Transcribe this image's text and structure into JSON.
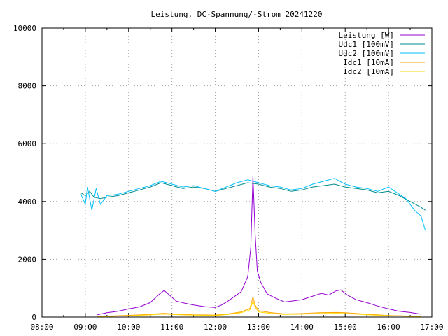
{
  "chart_data": {
    "type": "line",
    "title": "Leistung, DC-Spannung/-Strom 20241220",
    "xlabel": "",
    "ylabel": "",
    "xlim": [
      8,
      17
    ],
    "ylim": [
      0,
      10000
    ],
    "x_ticks": [
      {
        "v": 8,
        "label": "08:00"
      },
      {
        "v": 9,
        "label": "09:00"
      },
      {
        "v": 10,
        "label": "10:00"
      },
      {
        "v": 11,
        "label": "11:00"
      },
      {
        "v": 12,
        "label": "12:00"
      },
      {
        "v": 13,
        "label": "13:00"
      },
      {
        "v": 14,
        "label": "14:00"
      },
      {
        "v": 15,
        "label": "15:00"
      },
      {
        "v": 16,
        "label": "16:00"
      },
      {
        "v": 17,
        "label": "17:00"
      }
    ],
    "y_ticks": [
      {
        "v": 0,
        "label": "0"
      },
      {
        "v": 2000,
        "label": "2000"
      },
      {
        "v": 4000,
        "label": "4000"
      },
      {
        "v": 6000,
        "label": "6000"
      },
      {
        "v": 8000,
        "label": "8000"
      },
      {
        "v": 10000,
        "label": "10000"
      }
    ],
    "grid": true,
    "legend_position": "top-right",
    "series": [
      {
        "name": "Leistung [W]",
        "color": "#9400d3",
        "points": [
          [
            9.28,
            80
          ],
          [
            9.5,
            150
          ],
          [
            9.75,
            200
          ],
          [
            10.0,
            280
          ],
          [
            10.25,
            350
          ],
          [
            10.5,
            500
          ],
          [
            10.7,
            780
          ],
          [
            10.82,
            920
          ],
          [
            10.95,
            750
          ],
          [
            11.1,
            550
          ],
          [
            11.3,
            480
          ],
          [
            11.5,
            420
          ],
          [
            11.75,
            360
          ],
          [
            12.0,
            330
          ],
          [
            12.15,
            420
          ],
          [
            12.3,
            560
          ],
          [
            12.45,
            720
          ],
          [
            12.6,
            880
          ],
          [
            12.75,
            1400
          ],
          [
            12.82,
            2400
          ],
          [
            12.87,
            4900
          ],
          [
            12.92,
            2900
          ],
          [
            12.97,
            1600
          ],
          [
            13.05,
            1200
          ],
          [
            13.2,
            800
          ],
          [
            13.4,
            650
          ],
          [
            13.6,
            520
          ],
          [
            13.8,
            560
          ],
          [
            14.0,
            600
          ],
          [
            14.2,
            700
          ],
          [
            14.45,
            820
          ],
          [
            14.62,
            760
          ],
          [
            14.78,
            900
          ],
          [
            14.9,
            940
          ],
          [
            15.05,
            760
          ],
          [
            15.25,
            600
          ],
          [
            15.5,
            500
          ],
          [
            15.75,
            380
          ],
          [
            16.0,
            280
          ],
          [
            16.25,
            200
          ],
          [
            16.5,
            160
          ],
          [
            16.75,
            100
          ]
        ]
      },
      {
        "name": "Udc1 [100mV]",
        "color": "#008b8b",
        "points": [
          [
            8.9,
            4300
          ],
          [
            9.0,
            4200
          ],
          [
            9.1,
            4350
          ],
          [
            9.2,
            4150
          ],
          [
            9.35,
            4100
          ],
          [
            9.5,
            4150
          ],
          [
            9.75,
            4200
          ],
          [
            10.0,
            4300
          ],
          [
            10.25,
            4400
          ],
          [
            10.5,
            4500
          ],
          [
            10.75,
            4650
          ],
          [
            11.0,
            4550
          ],
          [
            11.25,
            4450
          ],
          [
            11.5,
            4500
          ],
          [
            11.75,
            4450
          ],
          [
            12.0,
            4350
          ],
          [
            12.25,
            4450
          ],
          [
            12.5,
            4550
          ],
          [
            12.75,
            4650
          ],
          [
            13.0,
            4600
          ],
          [
            13.25,
            4500
          ],
          [
            13.5,
            4450
          ],
          [
            13.75,
            4350
          ],
          [
            14.0,
            4400
          ],
          [
            14.25,
            4500
          ],
          [
            14.5,
            4550
          ],
          [
            14.75,
            4600
          ],
          [
            15.0,
            4500
          ],
          [
            15.25,
            4450
          ],
          [
            15.5,
            4400
          ],
          [
            15.75,
            4300
          ],
          [
            16.0,
            4350
          ],
          [
            16.25,
            4200
          ],
          [
            16.5,
            4000
          ],
          [
            16.75,
            3800
          ],
          [
            16.85,
            3700
          ]
        ]
      },
      {
        "name": "Udc2 [100mV]",
        "color": "#00bfff",
        "points": [
          [
            8.9,
            4250
          ],
          [
            9.0,
            3900
          ],
          [
            9.05,
            4500
          ],
          [
            9.15,
            3700
          ],
          [
            9.25,
            4450
          ],
          [
            9.35,
            3900
          ],
          [
            9.5,
            4200
          ],
          [
            9.75,
            4250
          ],
          [
            10.0,
            4350
          ],
          [
            10.25,
            4450
          ],
          [
            10.5,
            4550
          ],
          [
            10.75,
            4700
          ],
          [
            11.0,
            4600
          ],
          [
            11.25,
            4500
          ],
          [
            11.5,
            4550
          ],
          [
            11.75,
            4450
          ],
          [
            12.0,
            4350
          ],
          [
            12.25,
            4500
          ],
          [
            12.5,
            4650
          ],
          [
            12.75,
            4750
          ],
          [
            13.0,
            4650
          ],
          [
            13.25,
            4550
          ],
          [
            13.5,
            4500
          ],
          [
            13.75,
            4400
          ],
          [
            14.0,
            4450
          ],
          [
            14.25,
            4600
          ],
          [
            14.5,
            4700
          ],
          [
            14.75,
            4800
          ],
          [
            15.0,
            4600
          ],
          [
            15.25,
            4500
          ],
          [
            15.5,
            4450
          ],
          [
            15.75,
            4350
          ],
          [
            16.0,
            4500
          ],
          [
            16.2,
            4300
          ],
          [
            16.4,
            4100
          ],
          [
            16.6,
            3700
          ],
          [
            16.75,
            3500
          ],
          [
            16.85,
            3000
          ]
        ]
      },
      {
        "name": "Idc1 [10mA]",
        "color": "#ffa500",
        "points": [
          [
            9.28,
            15
          ],
          [
            9.5,
            30
          ],
          [
            9.75,
            45
          ],
          [
            10.0,
            60
          ],
          [
            10.25,
            75
          ],
          [
            10.5,
            95
          ],
          [
            10.8,
            130
          ],
          [
            11.0,
            110
          ],
          [
            11.5,
            80
          ],
          [
            12.0,
            70
          ],
          [
            12.3,
            110
          ],
          [
            12.6,
            180
          ],
          [
            12.8,
            300
          ],
          [
            12.87,
            700
          ],
          [
            12.92,
            420
          ],
          [
            13.0,
            220
          ],
          [
            13.3,
            150
          ],
          [
            13.6,
            110
          ],
          [
            14.0,
            120
          ],
          [
            14.4,
            150
          ],
          [
            14.8,
            160
          ],
          [
            15.0,
            150
          ],
          [
            15.5,
            100
          ],
          [
            16.0,
            55
          ],
          [
            16.5,
            35
          ],
          [
            16.75,
            20
          ]
        ]
      },
      {
        "name": "Idc2 [10mA]",
        "color": "#ffd700",
        "points": [
          [
            9.28,
            10
          ],
          [
            9.5,
            20
          ],
          [
            9.75,
            35
          ],
          [
            10.0,
            45
          ],
          [
            10.25,
            60
          ],
          [
            10.5,
            75
          ],
          [
            10.8,
            105
          ],
          [
            11.0,
            90
          ],
          [
            11.5,
            65
          ],
          [
            12.0,
            55
          ],
          [
            12.3,
            90
          ],
          [
            12.6,
            150
          ],
          [
            12.8,
            250
          ],
          [
            12.87,
            550
          ],
          [
            12.92,
            350
          ],
          [
            13.0,
            180
          ],
          [
            13.3,
            120
          ],
          [
            13.6,
            90
          ],
          [
            14.0,
            100
          ],
          [
            14.4,
            120
          ],
          [
            14.8,
            130
          ],
          [
            15.0,
            120
          ],
          [
            15.5,
            80
          ],
          [
            16.0,
            45
          ],
          [
            16.5,
            25
          ],
          [
            16.75,
            15
          ]
        ]
      }
    ]
  }
}
